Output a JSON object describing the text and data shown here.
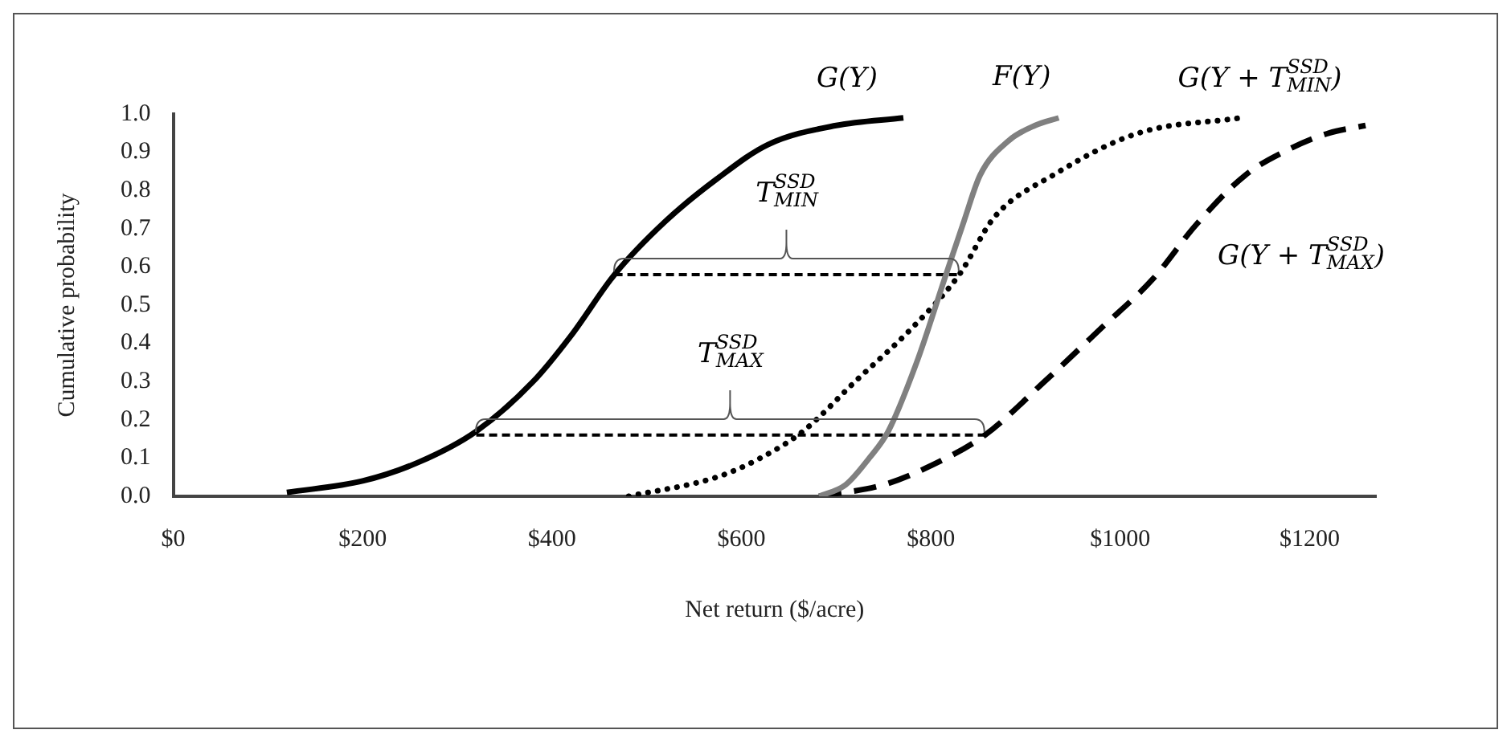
{
  "chart_data": {
    "type": "line",
    "xlabel": "Net return ($/acre)",
    "ylabel": "Cumulative probability",
    "xlim": [
      0,
      1270
    ],
    "ylim": [
      0,
      1
    ],
    "xticks": [
      {
        "value": 0,
        "label": "$0"
      },
      {
        "value": 200,
        "label": "$200"
      },
      {
        "value": 400,
        "label": "$400"
      },
      {
        "value": 600,
        "label": "$600"
      },
      {
        "value": 800,
        "label": "$800"
      },
      {
        "value": 1000,
        "label": "$1000"
      },
      {
        "value": 1200,
        "label": "$1200"
      }
    ],
    "yticks": [
      {
        "value": 0,
        "label": "0.0"
      },
      {
        "value": 0.1,
        "label": "0.1"
      },
      {
        "value": 0.2,
        "label": "0.2"
      },
      {
        "value": 0.3,
        "label": "0.3"
      },
      {
        "value": 0.4,
        "label": "0.4"
      },
      {
        "value": 0.5,
        "label": "0.5"
      },
      {
        "value": 0.6,
        "label": "0.6"
      },
      {
        "value": 0.7,
        "label": "0.7"
      },
      {
        "value": 0.8,
        "label": "0.8"
      },
      {
        "value": 0.9,
        "label": "0.9"
      },
      {
        "value": 1,
        "label": "1.0"
      }
    ],
    "marker": "none",
    "grid": false,
    "legend": false,
    "series": [
      {
        "name": "G(Y)",
        "color": "#000000",
        "line_style": "solid",
        "x": [
          120,
          200,
          260,
          320,
          380,
          420,
          466,
          520,
          574,
          628,
          700,
          771
        ],
        "values": [
          0.01,
          0.04,
          0.09,
          0.17,
          0.3,
          0.42,
          0.58,
          0.72,
          0.83,
          0.92,
          0.97,
          0.99
        ]
      },
      {
        "name": "F(Y)",
        "color": "#808080",
        "line_style": "solid",
        "x": [
          682,
          710,
          735,
          755,
          785,
          816,
          835,
          852,
          882,
          910,
          935
        ],
        "values": [
          0,
          0.03,
          0.1,
          0.17,
          0.35,
          0.58,
          0.72,
          0.84,
          0.93,
          0.97,
          0.99
        ]
      },
      {
        "name": "G(Y + T$^{SSD}$$_{MIN}$)",
        "color": "#000000",
        "line_style": "dotted",
        "x": [
          481,
          574,
          620,
          665,
          720,
          780,
          830,
          867,
          929,
          1019,
          1127
        ],
        "values": [
          0,
          0.05,
          0.1,
          0.17,
          0.3,
          0.44,
          0.58,
          0.73,
          0.84,
          0.95,
          0.99
        ]
      },
      {
        "name": "G(Y + T$^{SSD}$$_{MAX}$)",
        "color": "#000000",
        "line_style": "dashed",
        "x": [
          682,
          750,
          800,
          857,
          920,
          980,
          1035,
          1080,
          1132,
          1180,
          1220,
          1259
        ],
        "values": [
          0,
          0.03,
          0.08,
          0.16,
          0.3,
          0.44,
          0.57,
          0.71,
          0.84,
          0.91,
          0.95,
          0.97
        ]
      },
      {
        "color": "#000000",
        "line_style": "dashed",
        "x": [
          466,
          830
        ],
        "values": [
          0.58,
          0.58
        ]
      },
      {
        "color": "#000000",
        "line_style": "dashed",
        "x": [
          320,
          857
        ],
        "values": [
          0.16,
          0.16
        ]
      }
    ],
    "annotations": [
      {
        "text": "T$^{SSD}$$_{MIN}$",
        "x": 648,
        "y": 0.58
      },
      {
        "text": "T$^{SSD}$$_{MAX}$",
        "x": 588.5,
        "y": 0.16
      }
    ]
  }
}
